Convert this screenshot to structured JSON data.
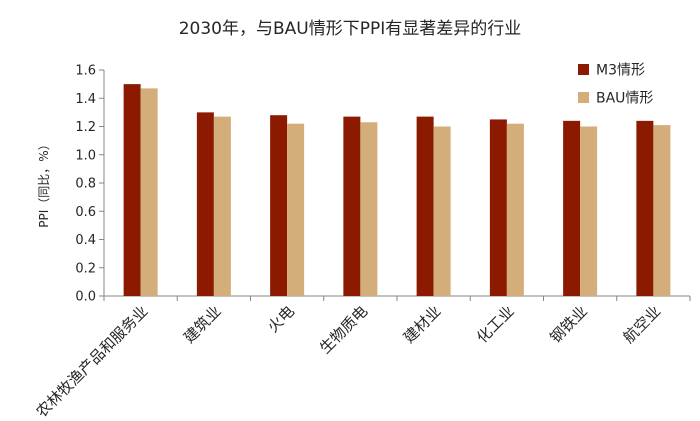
{
  "chart_data": {
    "type": "bar",
    "title": "2030年，与BAU情形下PPI有显著差异的行业",
    "xlabel": "",
    "ylabel": "PPI（同比，%）",
    "categories": [
      "农林牧渔产品和服务业",
      "建筑业",
      "火电",
      "生物质电",
      "建材业",
      "化工业",
      "钢铁业",
      "航空业"
    ],
    "series": [
      {
        "name": "M3情形",
        "color": "#8B1A00",
        "values": [
          1.5,
          1.3,
          1.28,
          1.27,
          1.27,
          1.25,
          1.24,
          1.24
        ]
      },
      {
        "name": "BAU情形",
        "color": "#D4AE7A",
        "values": [
          1.47,
          1.27,
          1.22,
          1.23,
          1.2,
          1.22,
          1.2,
          1.21
        ]
      }
    ],
    "ylim": [
      0.0,
      1.6
    ],
    "yticks": [
      "0.0",
      "0.2",
      "0.4",
      "0.6",
      "0.8",
      "1.0",
      "1.2",
      "1.4",
      "1.6"
    ],
    "grid": false,
    "legend_position": "top-right"
  }
}
